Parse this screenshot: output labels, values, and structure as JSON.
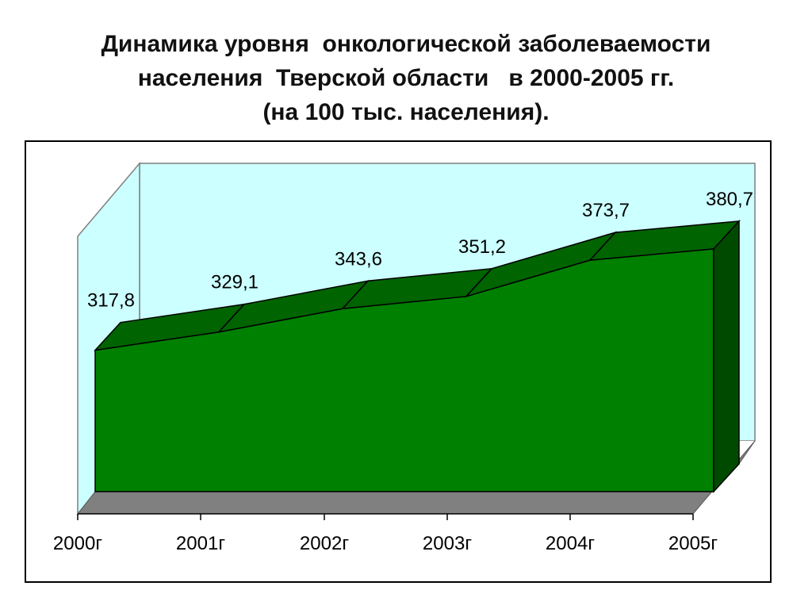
{
  "title_lines": [
    "Динамика уровня  онкологической заболеваемости",
    "населения  Тверской области   в 2000-2005 гг.",
    "(на 100 тыс. населения)."
  ],
  "colors": {
    "front": "#008000",
    "top": "#006400",
    "side": "#004a00",
    "wall": "#ccffff",
    "floor": "#808080",
    "edge": "#000000"
  },
  "chart_data": {
    "type": "area",
    "style": "3d",
    "title": "Динамика уровня  онкологической заболеваемости населения  Тверской области   в 2000-2005 гг. (на 100 тыс. населения).",
    "categories": [
      "2000г",
      "2001г",
      "2002г",
      "2003г",
      "2004г",
      "2005г"
    ],
    "values": [
      317.8,
      329.1,
      343.6,
      351.2,
      373.7,
      380.7
    ],
    "value_labels": [
      "317,8",
      "329,1",
      "343,6",
      "351,2",
      "373,7",
      "380,7"
    ],
    "xlabel": "",
    "ylabel": "",
    "ylim": [
      230,
      390
    ],
    "grid": false,
    "legend": "none"
  }
}
